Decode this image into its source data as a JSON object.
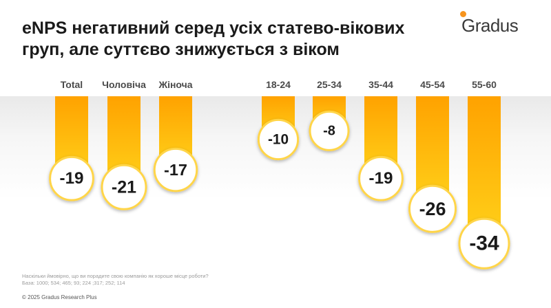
{
  "header": {
    "title_line1": "eNPS негативний серед усіх статево-вікових",
    "title_line2": "груп, але суттєво знижується з віком"
  },
  "logo": {
    "text": "Gradus"
  },
  "chart_data": {
    "type": "bar",
    "orientation": "vertical-downward",
    "categories": [
      "Total",
      "Чоловіча",
      "Жіноча",
      "18-24",
      "25-34",
      "35-44",
      "45-54",
      "55-60"
    ],
    "values": [
      -19,
      -21,
      -17,
      -10,
      -8,
      -19,
      -26,
      -34
    ],
    "data_labels": [
      "-19",
      "-21",
      "-17",
      "-10",
      "-8",
      "-19",
      "-26",
      "-34"
    ],
    "title": "",
    "xlabel": "",
    "ylabel": "",
    "ylim": [
      -40,
      0
    ],
    "grid": false,
    "legend": "none",
    "colors": {
      "bar_top": "#ffa200",
      "bar_bottom": "#ffd21a",
      "circle_border": "#ffd54a"
    }
  },
  "footer": {
    "question": "Наскільки ймовірно, що ви порадите свою компанію як хороше місце роботи?",
    "base": "База: 1000; 534; 465; 93; 224 ;317; 252; 114",
    "copyright": "© 2025 Gradus Research Plus"
  }
}
